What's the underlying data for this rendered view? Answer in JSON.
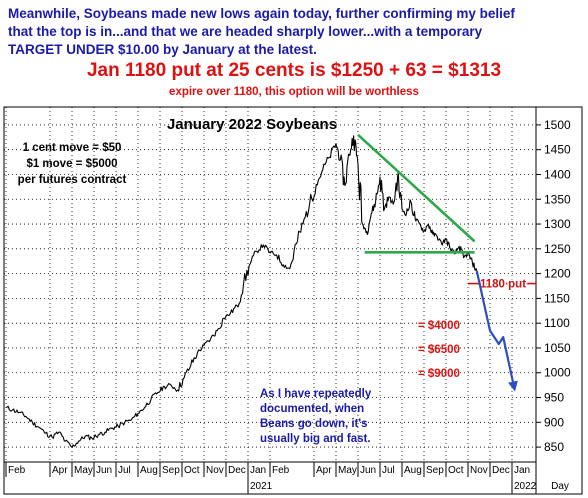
{
  "header": {
    "line1": "Meanwhile, Soybeans made new lows again today, further confirming my belief",
    "line2": "that the top is in...and that we are headed sharply lower...with a temporary",
    "line3": "TARGET UNDER $10.00 by January at the latest.",
    "headline": "Jan 1180 put at 25 cents is $1250 + 63 = $1313",
    "subline": "expire over 1180, this option will be worthless"
  },
  "chart_data": {
    "type": "line",
    "title": "January 2022 Soybeans",
    "xlabel": "",
    "ylabel": "",
    "ylim": [
      830,
      1520
    ],
    "yticks": [
      850,
      900,
      950,
      1000,
      1050,
      1100,
      1150,
      1200,
      1250,
      1300,
      1350,
      1400,
      1450,
      1500
    ],
    "y_unit_label": "Day",
    "months": [
      {
        "label": "Feb",
        "x": 0
      },
      {
        "label": "Apr",
        "x": 2
      },
      {
        "label": "May",
        "x": 3
      },
      {
        "label": "Jun",
        "x": 4
      },
      {
        "label": "Jul",
        "x": 5
      },
      {
        "label": "Aug",
        "x": 6
      },
      {
        "label": "Sep",
        "x": 7
      },
      {
        "label": "Oct",
        "x": 8
      },
      {
        "label": "Nov",
        "x": 9
      },
      {
        "label": "Dec",
        "x": 10
      },
      {
        "label": "Jan",
        "x": 11
      },
      {
        "label": "Feb",
        "x": 12
      },
      {
        "label": "Apr",
        "x": 14
      },
      {
        "label": "May",
        "x": 15
      },
      {
        "label": "Jun",
        "x": 16
      },
      {
        "label": "Jul",
        "x": 17
      },
      {
        "label": "Aug",
        "x": 18
      },
      {
        "label": "Sep",
        "x": 19
      },
      {
        "label": "Oct",
        "x": 20
      },
      {
        "label": "Nov",
        "x": 21
      },
      {
        "label": "Dec",
        "x": 22
      },
      {
        "label": "Jan",
        "x": 23
      }
    ],
    "year_labels": [
      {
        "label": "2021",
        "x": 11
      },
      {
        "label": "2022",
        "x": 23
      }
    ],
    "x_range": [
      0,
      24
    ],
    "series": [
      {
        "points": [
          [
            0.0,
            930
          ],
          [
            0.3,
            925
          ],
          [
            0.6,
            920
          ],
          [
            0.9,
            912
          ],
          [
            1.2,
            900
          ],
          [
            1.5,
            890
          ],
          [
            1.8,
            878
          ],
          [
            2.1,
            870
          ],
          [
            2.4,
            880
          ],
          [
            2.7,
            862
          ],
          [
            3.0,
            850
          ],
          [
            3.3,
            862
          ],
          [
            3.6,
            872
          ],
          [
            3.9,
            868
          ],
          [
            4.2,
            875
          ],
          [
            4.5,
            880
          ],
          [
            4.8,
            888
          ],
          [
            5.1,
            892
          ],
          [
            5.4,
            900
          ],
          [
            5.7,
            905
          ],
          [
            6.0,
            918
          ],
          [
            6.3,
            930
          ],
          [
            6.6,
            948
          ],
          [
            6.9,
            960
          ],
          [
            7.2,
            972
          ],
          [
            7.5,
            975
          ],
          [
            7.8,
            965
          ],
          [
            8.1,
            990
          ],
          [
            8.4,
            1015
          ],
          [
            8.7,
            1040
          ],
          [
            9.0,
            1055
          ],
          [
            9.3,
            1068
          ],
          [
            9.6,
            1085
          ],
          [
            9.9,
            1110
          ],
          [
            10.2,
            1120
          ],
          [
            10.5,
            1135
          ],
          [
            10.8,
            1180
          ],
          [
            11.1,
            1220
          ],
          [
            11.4,
            1245
          ],
          [
            11.7,
            1258
          ],
          [
            12.0,
            1242
          ],
          [
            12.3,
            1238
          ],
          [
            12.6,
            1218
          ],
          [
            12.9,
            1210
          ],
          [
            13.2,
            1260
          ],
          [
            13.5,
            1300
          ],
          [
            13.8,
            1340
          ],
          [
            14.1,
            1380
          ],
          [
            14.4,
            1410
          ],
          [
            14.7,
            1435
          ],
          [
            15.0,
            1462
          ],
          [
            15.2,
            1430
          ],
          [
            15.4,
            1378
          ],
          [
            15.6,
            1440
          ],
          [
            15.8,
            1478
          ],
          [
            16.0,
            1420
          ],
          [
            16.2,
            1300
          ],
          [
            16.4,
            1285
          ],
          [
            16.6,
            1320
          ],
          [
            16.8,
            1345
          ],
          [
            17.0,
            1395
          ],
          [
            17.2,
            1330
          ],
          [
            17.4,
            1355
          ],
          [
            17.6,
            1340
          ],
          [
            17.8,
            1395
          ],
          [
            18.0,
            1330
          ],
          [
            18.2,
            1320
          ],
          [
            18.4,
            1345
          ],
          [
            18.6,
            1310
          ],
          [
            18.8,
            1300
          ],
          [
            19.0,
            1285
          ],
          [
            19.2,
            1300
          ],
          [
            19.4,
            1280
          ],
          [
            19.6,
            1275
          ],
          [
            19.8,
            1260
          ],
          [
            20.0,
            1270
          ],
          [
            20.2,
            1250
          ],
          [
            20.4,
            1240
          ],
          [
            20.6,
            1255
          ],
          [
            20.8,
            1232
          ],
          [
            21.0,
            1240
          ],
          [
            21.2,
            1222
          ],
          [
            21.4,
            1205
          ]
        ]
      }
    ],
    "triangle": {
      "apex": [
        16.0,
        1480
      ],
      "tail": [
        21.3,
        1265
      ],
      "base_left": [
        16.3,
        1243
      ],
      "base_right": [
        21.3,
        1243
      ]
    },
    "put_level": {
      "value": 1180,
      "x_start": 21.0,
      "label": "1180 put"
    },
    "projection": [
      [
        21.4,
        1205
      ],
      [
        22.0,
        1085
      ],
      [
        22.4,
        1058
      ],
      [
        22.6,
        1072
      ],
      [
        23.1,
        970
      ]
    ],
    "annotations": {
      "contract": [
        "1 cent move = $50",
        "$1 move = $5000",
        "per futures contract"
      ],
      "dollar_levels": [
        "= $4000",
        "= $6500",
        "= $9000"
      ],
      "note": [
        "As I have repeatedly",
        "documented, when",
        "Beans go down, it's",
        "usually big and fast."
      ]
    }
  }
}
